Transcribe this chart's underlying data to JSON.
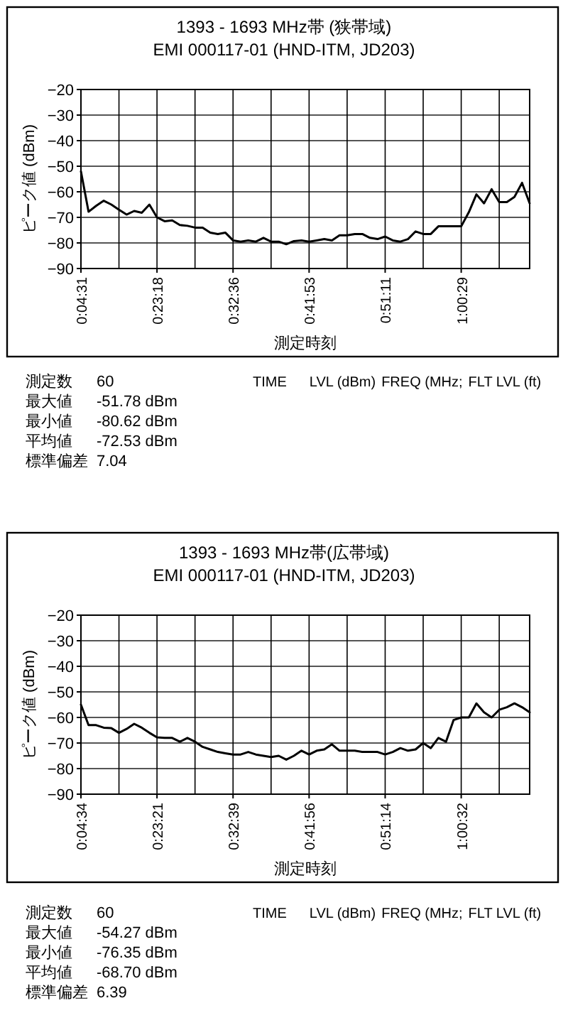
{
  "chart_data": [
    {
      "type": "line",
      "title": "1393 - 1693 MHz帯 (狭帯域)",
      "subtitle": "EMI 000117-01 (HND-ITM, JD203)",
      "xlabel": "測定時刻",
      "ylabel": "ピーク値 (dBm)",
      "color": "#000000",
      "ylim": [
        -90,
        -20
      ],
      "yticks": [
        -90,
        -80,
        -70,
        -60,
        -50,
        -40,
        -30,
        -20
      ],
      "grid": true,
      "categories": [
        "0:04:31",
        null,
        null,
        null,
        null,
        null,
        null,
        null,
        null,
        null,
        "0:23:18",
        null,
        null,
        null,
        null,
        null,
        null,
        null,
        null,
        null,
        "0:32:36",
        null,
        null,
        null,
        null,
        null,
        null,
        null,
        null,
        null,
        "0:41:53",
        null,
        null,
        null,
        null,
        null,
        null,
        null,
        null,
        null,
        "0:51:11",
        null,
        null,
        null,
        null,
        null,
        null,
        null,
        null,
        null,
        "1:00:29",
        null,
        null,
        null,
        null,
        null,
        null,
        null,
        null,
        null
      ],
      "values": [
        -52,
        -67.8,
        -65.5,
        -63.5,
        -65,
        -67,
        -68.9,
        -67.5,
        -68.2,
        -65,
        -70,
        -71.5,
        -71.2,
        -73,
        -73.3,
        -74,
        -74,
        -76,
        -76.5,
        -76,
        -79,
        -79.5,
        -79,
        -79.5,
        -78,
        -79.5,
        -79.5,
        -80.5,
        -79.3,
        -79,
        -79.5,
        -79,
        -78.5,
        -79,
        -77,
        -77,
        -76.5,
        -76.5,
        -78,
        -78.5,
        -77.5,
        -79,
        -79.5,
        -78.5,
        -75.5,
        -76.5,
        -76.5,
        -73.5,
        -73.5,
        -73.5,
        -73.5,
        -68,
        -61,
        -64.5,
        -59,
        -64,
        -64,
        -62,
        -56.5,
        -64.5
      ]
    },
    {
      "type": "other",
      "annotations": [
        "測定数",
        "60",
        "最大値",
        "-51.78 dBm",
        "最小値",
        "-80.62 dBm",
        "平均値",
        "-72.53 dBm",
        "標準偏差",
        "7.04",
        "TIME",
        "LVL (dBm)",
        "FREQ (MHz;",
        "FLT LVL (ft)"
      ]
    },
    {
      "type": "line",
      "title": "1393 - 1693 MHz帯(広帯域)",
      "subtitle": "EMI 000117-01 (HND-ITM, JD203)",
      "xlabel": "測定時刻",
      "ylabel": "ピーク値 (dBm)",
      "color": "#000000",
      "ylim": [
        -90,
        -20
      ],
      "yticks": [
        -90,
        -80,
        -70,
        -60,
        -50,
        -40,
        -30,
        -20
      ],
      "grid": true,
      "categories": [
        "0:04:34",
        null,
        null,
        null,
        null,
        null,
        null,
        null,
        null,
        null,
        "0:23:21",
        null,
        null,
        null,
        null,
        null,
        null,
        null,
        null,
        null,
        "0:32:39",
        null,
        null,
        null,
        null,
        null,
        null,
        null,
        null,
        null,
        "0:41:56",
        null,
        null,
        null,
        null,
        null,
        null,
        null,
        null,
        null,
        "0:51:14",
        null,
        null,
        null,
        null,
        null,
        null,
        null,
        null,
        null,
        "1:00:32",
        null,
        null,
        null,
        null,
        null,
        null,
        null,
        null,
        null
      ],
      "values": [
        -55,
        -63,
        -63,
        -64,
        -64.2,
        -66,
        -64.5,
        -62.5,
        -64,
        -66,
        -67.8,
        -68,
        -68,
        -69.5,
        -68,
        -69.5,
        -71.5,
        -72.5,
        -73.5,
        -74,
        -74.5,
        -74.5,
        -73.5,
        -74.5,
        -75,
        -75.5,
        -75,
        -76.5,
        -75,
        -73,
        -74.5,
        -73,
        -72.5,
        -70.5,
        -73,
        -73,
        -73,
        -73.5,
        -73.5,
        -73.5,
        -74.5,
        -73.5,
        -72,
        -73,
        -72.5,
        -70,
        -72,
        -68,
        -69.5,
        -61,
        -60,
        -60,
        -54.5,
        -58,
        -60,
        -57,
        -56,
        -54.5,
        -56,
        -58
      ]
    },
    {
      "type": "other",
      "annotations": [
        "測定数",
        "60",
        "最大値",
        "-54.27 dBm",
        "最小値",
        "-76.35 dBm",
        "平均値",
        "-68.70 dBm",
        "標準偏差",
        "6.39",
        "TIME",
        "LVL (dBm)",
        "FREQ (MHz;",
        "FLT LVL (ft)"
      ]
    }
  ]
}
